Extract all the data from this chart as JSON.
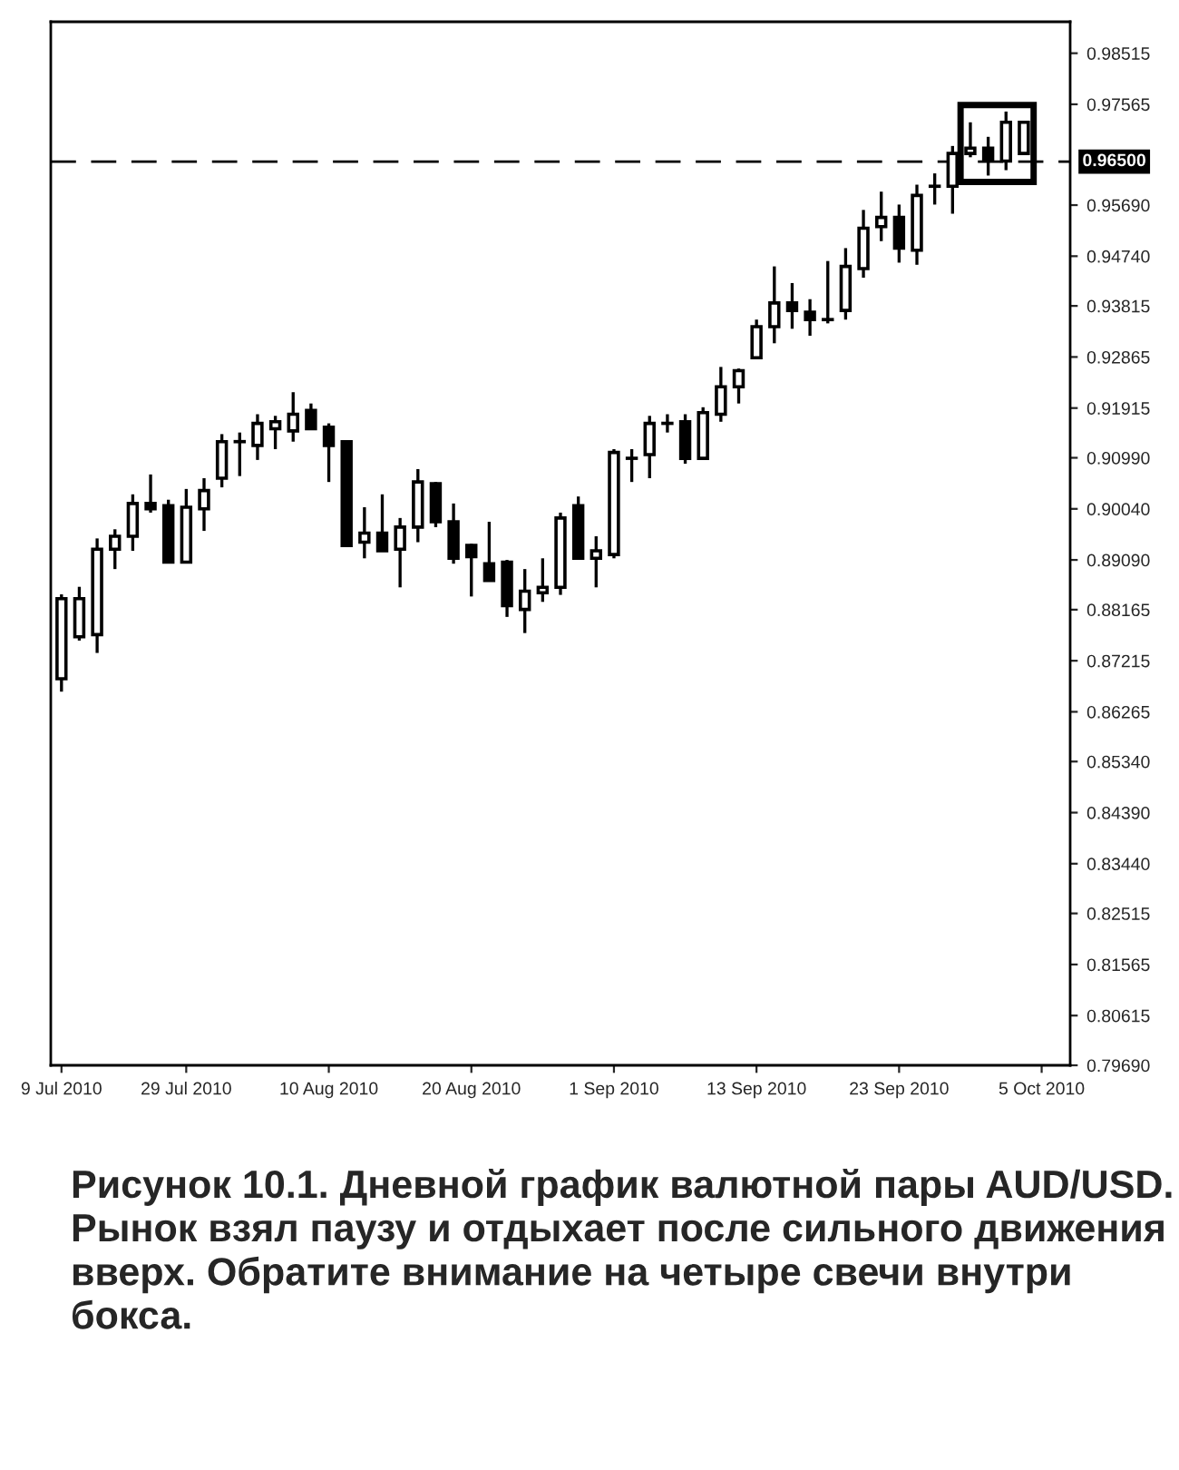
{
  "chart_data": {
    "type": "candlestick",
    "categories": [
      "9 Jul 2010",
      null,
      null,
      null,
      null,
      null,
      null,
      "29 Jul 2010",
      null,
      null,
      null,
      null,
      null,
      null,
      null,
      "10 Aug 2010",
      null,
      null,
      null,
      null,
      null,
      null,
      null,
      "20 Aug 2010",
      null,
      null,
      null,
      null,
      null,
      null,
      null,
      "1 Sep 2010",
      null,
      null,
      null,
      null,
      null,
      null,
      null,
      "13 Sep 2010",
      null,
      null,
      null,
      null,
      null,
      null,
      null,
      "23 Sep 2010",
      null,
      null,
      null,
      null,
      null,
      null,
      null,
      "5 Oct 2010"
    ],
    "ohlc": [
      [
        0.8688,
        0.8845,
        0.8664,
        0.8837
      ],
      [
        0.8766,
        0.8859,
        0.8759,
        0.8837
      ],
      [
        0.877,
        0.8949,
        0.8736,
        0.8929
      ],
      [
        0.8929,
        0.8966,
        0.8892,
        0.8953
      ],
      [
        0.8953,
        0.9031,
        0.8926,
        0.9014
      ],
      [
        0.9014,
        0.9068,
        0.8997,
        0.9004
      ],
      [
        0.901,
        0.9021,
        0.8905,
        0.8905
      ],
      [
        0.8905,
        0.9041,
        0.8905,
        0.9007
      ],
      [
        0.9004,
        0.9061,
        0.8963,
        0.9038
      ],
      [
        0.9061,
        0.9143,
        0.9044,
        0.9129
      ],
      [
        0.9129,
        0.9146,
        0.9065,
        0.9129
      ],
      [
        0.9122,
        0.918,
        0.9095,
        0.9163
      ],
      [
        0.9153,
        0.9177,
        0.9115,
        0.9166
      ],
      [
        0.9149,
        0.9221,
        0.9129,
        0.918
      ],
      [
        0.9187,
        0.92,
        0.9153,
        0.9153
      ],
      [
        0.9156,
        0.9163,
        0.9054,
        0.9122
      ],
      [
        0.9129,
        0.9129,
        0.8936,
        0.8936
      ],
      [
        0.8942,
        0.9007,
        0.8912,
        0.8959
      ],
      [
        0.8959,
        0.9031,
        0.8926,
        0.8926
      ],
      [
        0.8929,
        0.8987,
        0.8858,
        0.897
      ],
      [
        0.897,
        0.9078,
        0.8942,
        0.9054
      ],
      [
        0.9051,
        0.9054,
        0.897,
        0.898
      ],
      [
        0.898,
        0.9014,
        0.8902,
        0.8912
      ],
      [
        0.8936,
        0.8939,
        0.8841,
        0.8915
      ],
      [
        0.8902,
        0.898,
        0.8871,
        0.8871
      ],
      [
        0.8905,
        0.8909,
        0.8803,
        0.8824
      ],
      [
        0.8817,
        0.8892,
        0.8773,
        0.8851
      ],
      [
        0.8848,
        0.8912,
        0.8831,
        0.8858
      ],
      [
        0.8858,
        0.8997,
        0.8844,
        0.8987
      ],
      [
        0.901,
        0.9027,
        0.8912,
        0.8912
      ],
      [
        0.8912,
        0.8953,
        0.8858,
        0.8926
      ],
      [
        0.8919,
        0.9115,
        0.8912,
        0.9109
      ],
      [
        0.9098,
        0.9115,
        0.9054,
        0.9098
      ],
      [
        0.9105,
        0.9177,
        0.9061,
        0.9163
      ],
      [
        0.9163,
        0.918,
        0.9146,
        0.9163
      ],
      [
        0.9166,
        0.918,
        0.9088,
        0.9098
      ],
      [
        0.9098,
        0.9193,
        0.9095,
        0.9183
      ],
      [
        0.918,
        0.9268,
        0.9166,
        0.9231
      ],
      [
        0.9231,
        0.9265,
        0.92,
        0.9261
      ],
      [
        0.9285,
        0.9356,
        0.9285,
        0.9343
      ],
      [
        0.9343,
        0.9455,
        0.9312,
        0.9387
      ],
      [
        0.9387,
        0.9424,
        0.9339,
        0.9373
      ],
      [
        0.937,
        0.9394,
        0.9326,
        0.9356
      ],
      [
        0.9356,
        0.9465,
        0.9349,
        0.9356
      ],
      [
        0.9373,
        0.9489,
        0.9356,
        0.9455
      ],
      [
        0.9451,
        0.956,
        0.9434,
        0.9526
      ],
      [
        0.9529,
        0.9594,
        0.9502,
        0.9546
      ],
      [
        0.9546,
        0.957,
        0.9462,
        0.9489
      ],
      [
        0.9485,
        0.9607,
        0.9458,
        0.9587
      ],
      [
        0.9604,
        0.9628,
        0.957,
        0.9604
      ],
      [
        0.9604,
        0.9679,
        0.9553,
        0.9665
      ],
      [
        0.9665,
        0.9723,
        0.9658,
        0.9675
      ],
      [
        0.9675,
        0.9696,
        0.9624,
        0.9655
      ],
      [
        0.9651,
        0.9743,
        0.9634,
        0.9723
      ],
      [
        0.9665,
        0.9726,
        0.9665,
        0.9723
      ],
      null
    ],
    "ylim": [
      0.7969,
      0.991
    ],
    "yticks": [
      {
        "value": 0.98515,
        "label": "0.98515"
      },
      {
        "value": 0.97565,
        "label": "0.97565"
      },
      {
        "value": 0.9569,
        "label": "0.95690"
      },
      {
        "value": 0.9474,
        "label": "0.94740"
      },
      {
        "value": 0.93815,
        "label": "0.93815"
      },
      {
        "value": 0.92865,
        "label": "0.92865"
      },
      {
        "value": 0.91915,
        "label": "0.91915"
      },
      {
        "value": 0.9099,
        "label": "0.90990"
      },
      {
        "value": 0.9004,
        "label": "0.90040"
      },
      {
        "value": 0.8909,
        "label": "0.89090"
      },
      {
        "value": 0.88165,
        "label": "0.88165"
      },
      {
        "value": 0.87215,
        "label": "0.87215"
      },
      {
        "value": 0.86265,
        "label": "0.86265"
      },
      {
        "value": 0.8534,
        "label": "0.85340"
      },
      {
        "value": 0.8439,
        "label": "0.84390"
      },
      {
        "value": 0.8344,
        "label": "0.83440"
      },
      {
        "value": 0.82515,
        "label": "0.82515"
      },
      {
        "value": 0.81565,
        "label": "0.81565"
      },
      {
        "value": 0.80615,
        "label": "0.80615"
      },
      {
        "value": 0.7969,
        "label": "0.79690"
      }
    ],
    "ref_lines": [
      {
        "axis": "y",
        "value": 0.965,
        "label": "0.96500",
        "color": "#000000",
        "line_style": "dashed"
      }
    ],
    "annotations": [
      "Рисунок 10.1. Дневной график валютной пары AUD/USD. Рынок взял паузу и отдыхает после сильного движения вверх. Обратите внимание на четыре свечи внутри бокса."
    ]
  }
}
